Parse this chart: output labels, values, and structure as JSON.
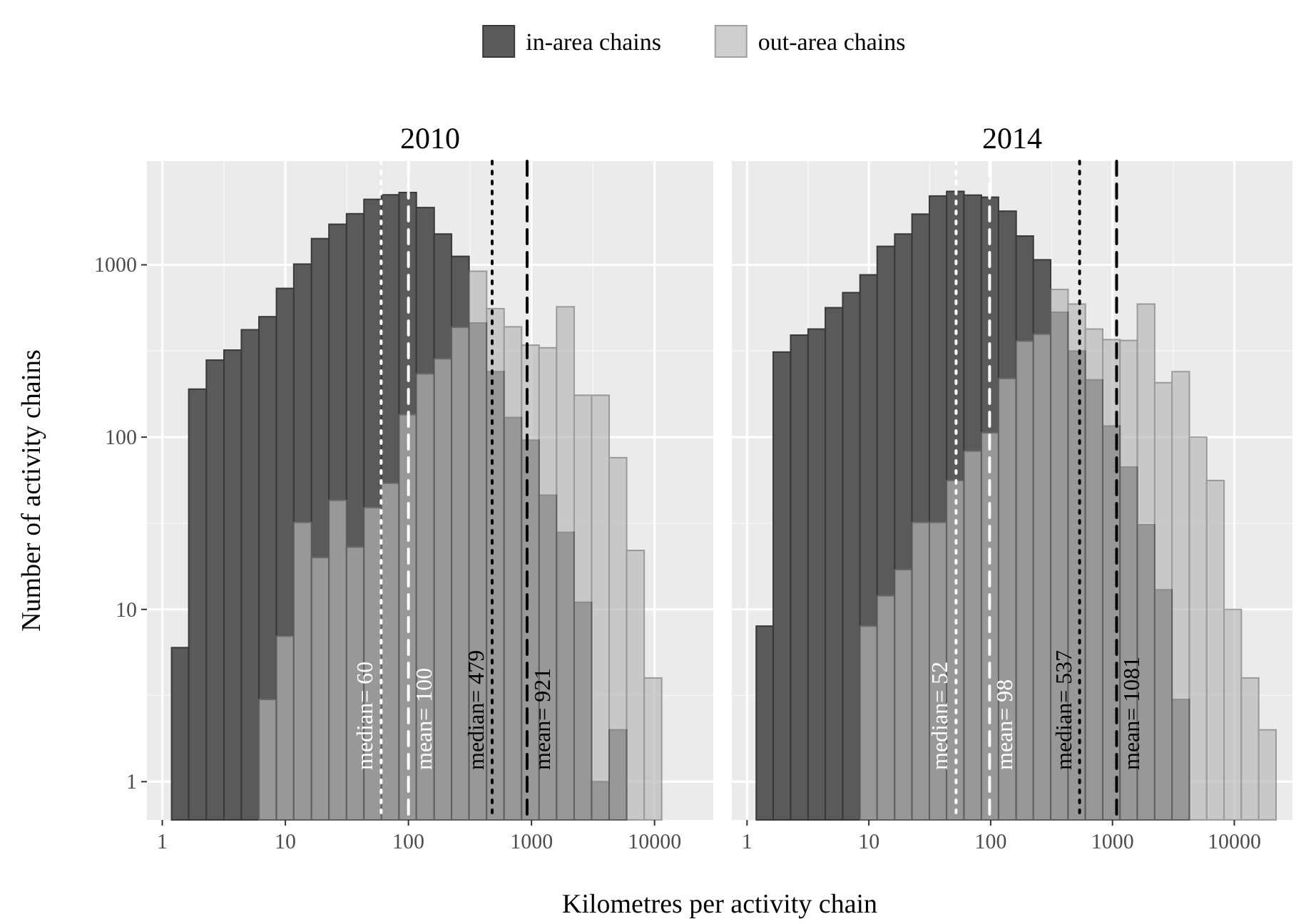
{
  "chart_data": [
    {
      "type": "histogram",
      "title": "2010",
      "xlabel": "Kilometres per activity chain",
      "ylabel": "Number of activity chains",
      "bins": [
        1.19,
        1.64,
        2.28,
        3.17,
        4.39,
        6.1,
        8.46,
        11.7,
        16.3,
        22.6,
        31.4,
        43.5,
        60.4,
        83.9,
        116,
        162,
        224,
        311,
        432,
        599,
        831,
        1153,
        1600,
        2221,
        3082,
        4277,
        5935,
        8237,
        11429
      ],
      "series": [
        {
          "name": "in-area chains",
          "color": "#5a5a5a",
          "values": [
            6,
            190,
            280,
            320,
            420,
            500,
            730,
            1010,
            1420,
            1720,
            1980,
            2400,
            2550,
            2630,
            2150,
            1510,
            1120,
            460,
            240,
            130,
            96,
            46,
            28,
            11,
            1,
            2,
            null,
            null
          ]
        },
        {
          "name": "out-area chains",
          "color": "#b7b7b7",
          "values": [
            null,
            null,
            null,
            null,
            null,
            3,
            7,
            32,
            20,
            43,
            23,
            39,
            54,
            135,
            233,
            285,
            434,
            918,
            557,
            437,
            342,
            330,
            571,
            175,
            175,
            76,
            22,
            4
          ]
        }
      ],
      "xlim": [
        0.75,
        30000
      ],
      "ylim": [
        0.6,
        4000
      ],
      "xticks": [
        1,
        10,
        100,
        1000,
        10000
      ],
      "yticks": [
        1,
        10,
        100,
        1000
      ],
      "log": "xy",
      "grid": true,
      "legend": "top",
      "ref_lines": [
        {
          "axis": "x",
          "value": 60,
          "label": "median= 60",
          "color": "#ffffff",
          "line_style": "dotted"
        },
        {
          "axis": "x",
          "value": 100,
          "label": "mean= 100",
          "color": "#ffffff",
          "line_style": "dashed"
        },
        {
          "axis": "x",
          "value": 479,
          "label": "median= 479",
          "color": "#000000",
          "line_style": "dotted"
        },
        {
          "axis": "x",
          "value": 921,
          "label": "mean= 921",
          "color": "#000000",
          "line_style": "dashed"
        }
      ]
    },
    {
      "type": "histogram",
      "title": "2014",
      "bins": [
        1.19,
        1.64,
        2.28,
        3.17,
        4.39,
        6.1,
        8.46,
        11.7,
        16.3,
        22.6,
        31.4,
        43.5,
        60.4,
        83.9,
        116,
        162,
        224,
        311,
        432,
        599,
        831,
        1153,
        1600,
        2221,
        3082,
        4277,
        5935,
        8237,
        11429,
        15861,
        22011
      ],
      "series": [
        {
          "color": "#5a5a5a",
          "values": [
            8,
            312,
            391,
            424,
            564,
            690,
            875,
            1280,
            1510,
            1970,
            2510,
            2670,
            2540,
            2470,
            2050,
            1470,
            1070,
            531,
            316,
            215,
            116,
            67,
            31,
            13,
            3,
            null,
            null,
            null,
            null,
            null
          ]
        },
        {
          "color": "#b7b7b7",
          "values": [
            null,
            null,
            null,
            null,
            null,
            null,
            8,
            12,
            17,
            32,
            32,
            56,
            83,
            106,
            219,
            361,
            396,
            720,
            592,
            424,
            368,
            364,
            592,
            207,
            240,
            100,
            56,
            10,
            4,
            2
          ]
        }
      ],
      "xlim": [
        0.75,
        30000
      ],
      "ylim": [
        0.6,
        4000
      ],
      "xticks": [
        1,
        10,
        100,
        1000,
        10000
      ],
      "yticks": [
        1,
        10,
        100,
        1000
      ],
      "log": "xy",
      "grid": true,
      "tick_labels": "x",
      "ref_lines": [
        {
          "axis": "x",
          "value": 52,
          "label": "median= 52",
          "color": "#ffffff",
          "line_style": "dotted"
        },
        {
          "axis": "x",
          "value": 98,
          "label": "mean= 98",
          "color": "#ffffff",
          "line_style": "dashed"
        },
        {
          "axis": "x",
          "value": 537,
          "label": "median= 537",
          "color": "#000000",
          "line_style": "dotted"
        },
        {
          "axis": "x",
          "value": 1081,
          "label": "mean= 1081",
          "color": "#000000",
          "line_style": "dashed"
        }
      ]
    }
  ]
}
